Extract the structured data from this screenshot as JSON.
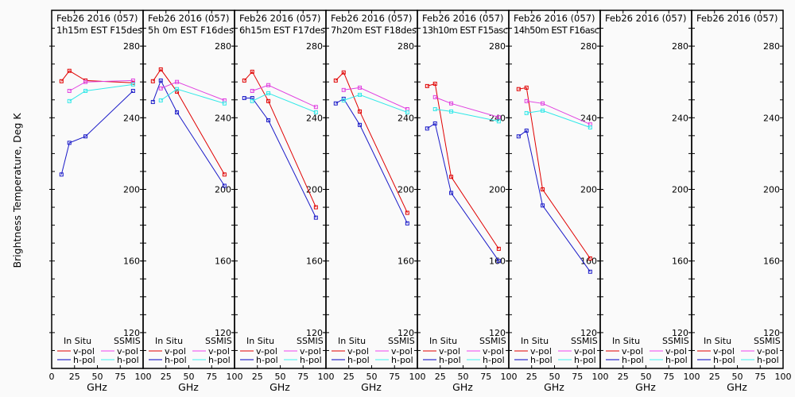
{
  "chart_data": {
    "type": "line",
    "ylabel": "Brightness Temperature, Deg K",
    "xlabel": "GHz",
    "xlim": [
      0,
      100
    ],
    "ylim": [
      100,
      300
    ],
    "x_ticks": [
      0,
      25,
      50,
      75,
      100
    ],
    "y_ticks": [
      120,
      160,
      200,
      240,
      280
    ],
    "y_minor_step": 10,
    "grid": false,
    "legend": {
      "placement": "bottom",
      "headers": [
        "In Situ",
        "SSMIS"
      ],
      "entries": [
        {
          "group": "In Situ",
          "label": "v-pol",
          "color": "#e00000"
        },
        {
          "group": "In Situ",
          "label": "h-pol",
          "color": "#0000c0"
        },
        {
          "group": "SSMIS",
          "label": "v-pol",
          "color": "#ee44ee"
        },
        {
          "group": "SSMIS",
          "label": "h-pol",
          "color": "#44eeee"
        }
      ]
    },
    "series_colors": {
      "insitu_v": "#e00000",
      "insitu_h": "#1a1ac8",
      "ssmis_v": "#e040e0",
      "ssmis_h": "#30e8e8"
    },
    "panels": [
      {
        "title1": "Feb26 2016 (057)",
        "title2": "1h15m EST F15des",
        "insitu_v": {
          "x": [
            10.7,
            19.35,
            37,
            89
          ],
          "y": [
            260.4,
            266.2,
            260.8,
            259.5
          ]
        },
        "insitu_h": {
          "x": [
            10.7,
            19.35,
            37,
            89
          ],
          "y": [
            208.3,
            226,
            229.6,
            255
          ]
        },
        "ssmis_v": {
          "x": [
            19.35,
            37,
            89
          ],
          "y": [
            255,
            260,
            260.8
          ]
        },
        "ssmis_h": {
          "x": [
            19.35,
            37,
            89
          ],
          "y": [
            249.3,
            255,
            258.6
          ]
        }
      },
      {
        "title1": "Feb26 2016 (057)",
        "title2": "5h 0m EST F16des",
        "insitu_v": {
          "x": [
            10.7,
            19.35,
            37,
            89
          ],
          "y": [
            260.4,
            267,
            254.6,
            208.3
          ]
        },
        "insitu_h": {
          "x": [
            10.7,
            19.35,
            37,
            89
          ],
          "y": [
            248.8,
            260.8,
            243,
            202
          ]
        },
        "ssmis_v": {
          "x": [
            19.35,
            37,
            89
          ],
          "y": [
            256.4,
            260,
            249.7
          ]
        },
        "ssmis_h": {
          "x": [
            19.35,
            37,
            89
          ],
          "y": [
            249.7,
            256,
            248
          ]
        }
      },
      {
        "title1": "Feb26 2016 (057)",
        "title2": "6h15m EST F17des",
        "insitu_v": {
          "x": [
            10.7,
            19.35,
            37,
            89
          ],
          "y": [
            260.8,
            265.7,
            249.3,
            190
          ]
        },
        "insitu_h": {
          "x": [
            10.7,
            19.35,
            37,
            89
          ],
          "y": [
            251,
            251,
            238.6,
            184.2
          ]
        },
        "ssmis_v": {
          "x": [
            19.35,
            37,
            89
          ],
          "y": [
            255,
            258.2,
            246
          ]
        },
        "ssmis_h": {
          "x": [
            19.35,
            37,
            89
          ],
          "y": [
            249.3,
            253.7,
            243
          ]
        }
      },
      {
        "title1": "Feb26 2016 (057)",
        "title2": "7h20m EST F18des",
        "insitu_v": {
          "x": [
            10.7,
            19.35,
            37,
            89
          ],
          "y": [
            260.8,
            265.3,
            243.5,
            186.9
          ]
        },
        "insitu_h": {
          "x": [
            10.7,
            19.35,
            37,
            89
          ],
          "y": [
            248,
            250.6,
            236,
            181
          ]
        },
        "ssmis_v": {
          "x": [
            19.35,
            37,
            89
          ],
          "y": [
            255.5,
            256.8,
            244.8
          ]
        },
        "ssmis_h": {
          "x": [
            19.35,
            37,
            89
          ],
          "y": [
            249.7,
            252.8,
            243
          ]
        }
      },
      {
        "title1": "Feb26 2016 (057)",
        "title2": "13h10m EST F15asc",
        "insitu_v": {
          "x": [
            10.7,
            19.35,
            37,
            89
          ],
          "y": [
            257.7,
            259,
            207,
            166.8
          ]
        },
        "insitu_h": {
          "x": [
            10.7,
            19.35,
            37,
            89
          ],
          "y": [
            234,
            236.8,
            198,
            160
          ]
        },
        "ssmis_v": {
          "x": [
            19.35,
            37,
            89
          ],
          "y": [
            251.5,
            248,
            240.3
          ]
        },
        "ssmis_h": {
          "x": [
            19.35,
            37,
            89
          ],
          "y": [
            244.8,
            243.5,
            238
          ]
        }
      },
      {
        "title1": "Feb26 2016 (057)",
        "title2": "14h50m EST F16asc",
        "insitu_v": {
          "x": [
            10.7,
            19.35,
            37,
            89
          ],
          "y": [
            256,
            256.8,
            200,
            161.4
          ]
        },
        "insitu_h": {
          "x": [
            10.7,
            19.35,
            37,
            89
          ],
          "y": [
            229.6,
            232.8,
            191,
            154
          ]
        },
        "ssmis_v": {
          "x": [
            19.35,
            37,
            89
          ],
          "y": [
            249.3,
            248,
            236.3
          ]
        },
        "ssmis_h": {
          "x": [
            19.35,
            37,
            89
          ],
          "y": [
            242.6,
            244,
            234.6
          ]
        }
      },
      {
        "title1": "Feb26 2016 (057)",
        "title2": "",
        "insitu_v": {
          "x": [],
          "y": []
        },
        "insitu_h": {
          "x": [],
          "y": []
        },
        "ssmis_v": {
          "x": [],
          "y": []
        },
        "ssmis_h": {
          "x": [],
          "y": []
        }
      },
      {
        "title1": "Feb26 2016 (057)",
        "title2": "",
        "insitu_v": {
          "x": [],
          "y": []
        },
        "insitu_h": {
          "x": [],
          "y": []
        },
        "ssmis_v": {
          "x": [],
          "y": []
        },
        "ssmis_h": {
          "x": [],
          "y": []
        }
      }
    ]
  }
}
